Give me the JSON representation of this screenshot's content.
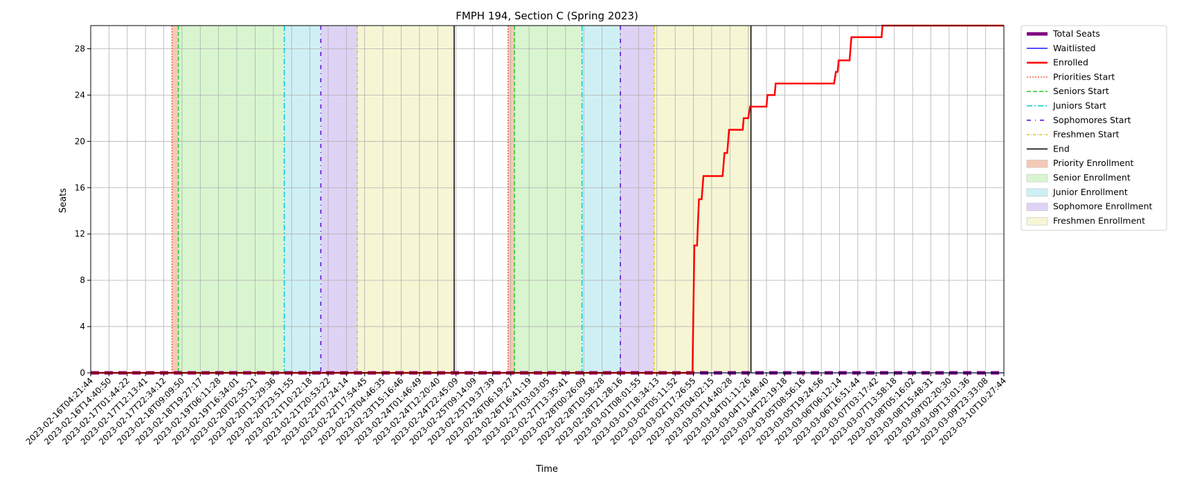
{
  "chart_data": {
    "type": "line",
    "title": "FMPH 194, Section C (Spring 2023)",
    "xlabel": "Time",
    "ylabel": "Seats",
    "ylim": [
      0,
      30
    ],
    "yticks": [
      0,
      4,
      8,
      12,
      16,
      20,
      24,
      28
    ],
    "grid": true,
    "legend_position": "outside-right",
    "x_tick_labels": [
      "2023-02-16T04:21:44",
      "2023-02-16T14:40:50",
      "2023-02-17T01:44:22",
      "2023-02-17T12:13:41",
      "2023-02-17T22:34:12",
      "2023-02-18T09:09:50",
      "2023-02-18T19:27:17",
      "2023-02-19T06:11:28",
      "2023-02-19T16:34:01",
      "2023-02-20T02:55:21",
      "2023-02-20T13:29:36",
      "2023-02-20T23:51:55",
      "2023-02-21T10:22:18",
      "2023-02-21T20:53:22",
      "2023-02-22T07:24:14",
      "2023-02-22T17:54:45",
      "2023-02-23T04:46:35",
      "2023-02-23T15:16:46",
      "2023-02-24T01:46:49",
      "2023-02-24T12:20:40",
      "2023-02-24T22:45:09",
      "2023-02-25T09:14:09",
      "2023-02-25T19:37:39",
      "2023-02-26T06:19:27",
      "2023-02-26T16:41:19",
      "2023-02-27T03:03:05",
      "2023-02-27T13:35:41",
      "2023-02-28T00:26:09",
      "2023-02-28T10:58:28",
      "2023-02-28T21:28:16",
      "2023-03-01T08:01:55",
      "2023-03-01T18:34:13",
      "2023-03-02T05:11:52",
      "2023-03-02T17:26:55",
      "2023-03-03T04:02:15",
      "2023-03-03T14:40:28",
      "2023-03-04T01:11:26",
      "2023-03-04T11:48:40",
      "2023-03-04T22:19:18",
      "2023-03-05T08:56:16",
      "2023-03-05T19:24:56",
      "2023-03-06T06:12:14",
      "2023-03-06T16:51:44",
      "2023-03-07T03:17:42",
      "2023-03-07T13:58:18",
      "2023-03-08T05:16:02",
      "2023-03-08T15:48:31",
      "2023-03-09T02:20:30",
      "2023-03-09T13:01:36",
      "2023-03-09T23:33:08",
      "2023-03-10T10:27:44"
    ],
    "x_index_range": [
      0,
      50
    ],
    "series": [
      {
        "name": "Total Seats",
        "color": "#800080",
        "style": "thick",
        "points": [
          [
            0,
            0
          ],
          [
            50,
            0
          ]
        ]
      },
      {
        "name": "Waitlisted",
        "color": "#0000ff",
        "style": "thin",
        "points": [
          [
            0,
            0
          ],
          [
            50,
            0
          ]
        ]
      },
      {
        "name": "Enrolled",
        "color": "#ff0000",
        "style": "step",
        "points": [
          [
            0,
            0
          ],
          [
            32.95,
            0
          ],
          [
            33.05,
            11
          ],
          [
            33.2,
            11
          ],
          [
            33.3,
            15
          ],
          [
            33.45,
            15
          ],
          [
            33.55,
            17
          ],
          [
            34.6,
            17
          ],
          [
            34.7,
            19
          ],
          [
            34.85,
            19
          ],
          [
            34.9,
            20
          ],
          [
            34.95,
            21
          ],
          [
            35.7,
            21
          ],
          [
            35.75,
            22
          ],
          [
            36.0,
            22
          ],
          [
            36.1,
            23
          ],
          [
            37.0,
            23
          ],
          [
            37.05,
            24
          ],
          [
            37.45,
            24
          ],
          [
            37.5,
            25
          ],
          [
            40.7,
            25
          ],
          [
            40.8,
            26
          ],
          [
            40.9,
            26
          ],
          [
            40.95,
            27
          ],
          [
            41.55,
            27
          ],
          [
            41.6,
            28
          ],
          [
            41.65,
            29
          ],
          [
            43.3,
            29
          ],
          [
            43.35,
            30
          ],
          [
            50,
            30
          ]
        ]
      }
    ],
    "phases": [
      {
        "name": "Priorities Start",
        "color": "#ff5a3c",
        "dash": "2,2"
      },
      {
        "name": "Seniors Start",
        "color": "#22cc22",
        "dash": "6,3"
      },
      {
        "name": "Juniors Start",
        "color": "#00c8d4",
        "dash": "8,3,2,3"
      },
      {
        "name": "Sophomores Start",
        "color": "#5a00e0",
        "dash": "6,6,1,6"
      },
      {
        "name": "Freshmen Start",
        "color": "#d4c800",
        "dash": "4,2,1,2"
      },
      {
        "name": "End",
        "color": "#000000",
        "dash": ""
      }
    ],
    "periods": [
      {
        "priority": 4.45,
        "senior": 4.8,
        "junior": 10.6,
        "sophomore": 12.6,
        "freshmen": 14.6,
        "end": 19.9
      },
      {
        "priority": 22.85,
        "senior": 23.2,
        "junior": 26.9,
        "sophomore": 29.0,
        "freshmen": 30.85,
        "end": 36.15
      }
    ],
    "shading": [
      {
        "name": "Priority Enrollment",
        "color": "#f4c9b8"
      },
      {
        "name": "Senior Enrollment",
        "color": "#d8f5d0"
      },
      {
        "name": "Junior Enrollment",
        "color": "#cef0f4"
      },
      {
        "name": "Sophomore Enrollment",
        "color": "#dfd3f5"
      },
      {
        "name": "Freshmen Enrollment",
        "color": "#f6f6d5"
      }
    ]
  }
}
